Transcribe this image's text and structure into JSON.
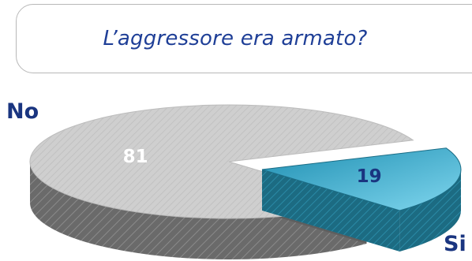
{
  "question": "L’aggressore era armato?",
  "chart_data": {
    "type": "pie",
    "categories": [
      "No",
      "Si"
    ],
    "values": [
      81,
      19
    ],
    "data_labels": [
      "81",
      "19"
    ],
    "colors": {
      "No": "#cfcfcf",
      "Si": "#33a6c9"
    },
    "exploded": "Si",
    "style": "3d"
  }
}
